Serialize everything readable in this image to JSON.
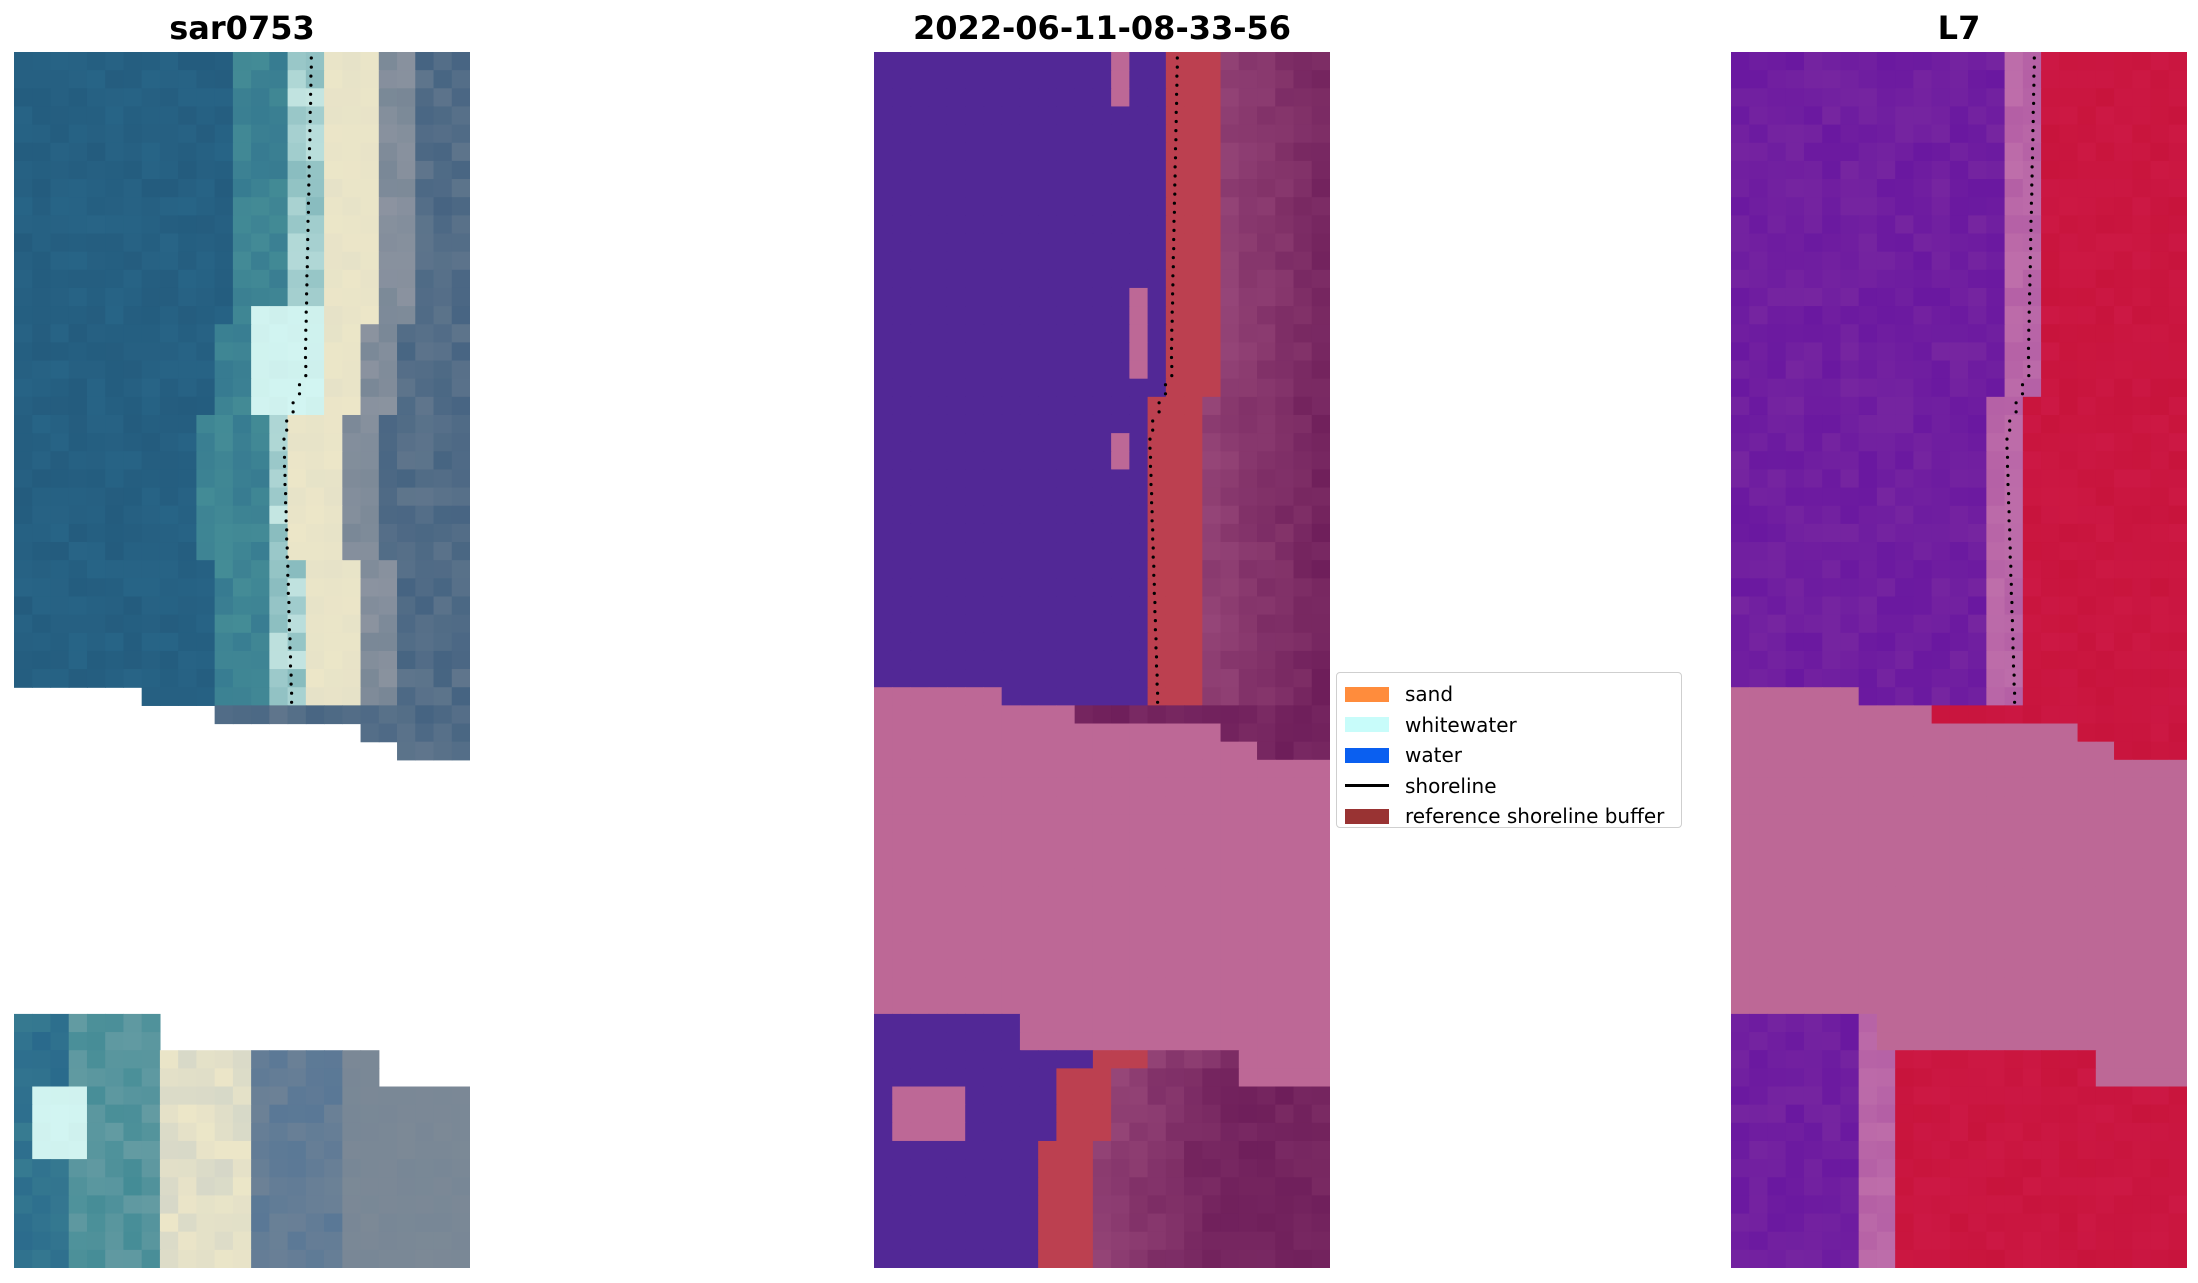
{
  "panels": [
    {
      "title": "sar0753"
    },
    {
      "title": "2022-06-11-08-33-56"
    },
    {
      "title": "L7"
    }
  ],
  "legend": {
    "items": [
      {
        "label": "sand",
        "color": "#ff8c3c",
        "kind": "patch"
      },
      {
        "label": "whitewater",
        "color": "#c8fcfa",
        "kind": "patch"
      },
      {
        "label": "water",
        "color": "#0a5ff0",
        "kind": "patch"
      },
      {
        "label": "shoreline",
        "color": "#000000",
        "kind": "line"
      },
      {
        "label": "reference shoreline buffer",
        "color": "#993333",
        "kind": "patch"
      }
    ]
  },
  "colors": {
    "rgb_water": "#2a6a8c",
    "rgb_sand": "#ece6c8",
    "class_water": "#522896",
    "class_sand": "#bc4050",
    "class_nodata": "#bd6896",
    "mndwi_low": "#6a18a0",
    "mndwi_high": "#c8143c"
  }
}
